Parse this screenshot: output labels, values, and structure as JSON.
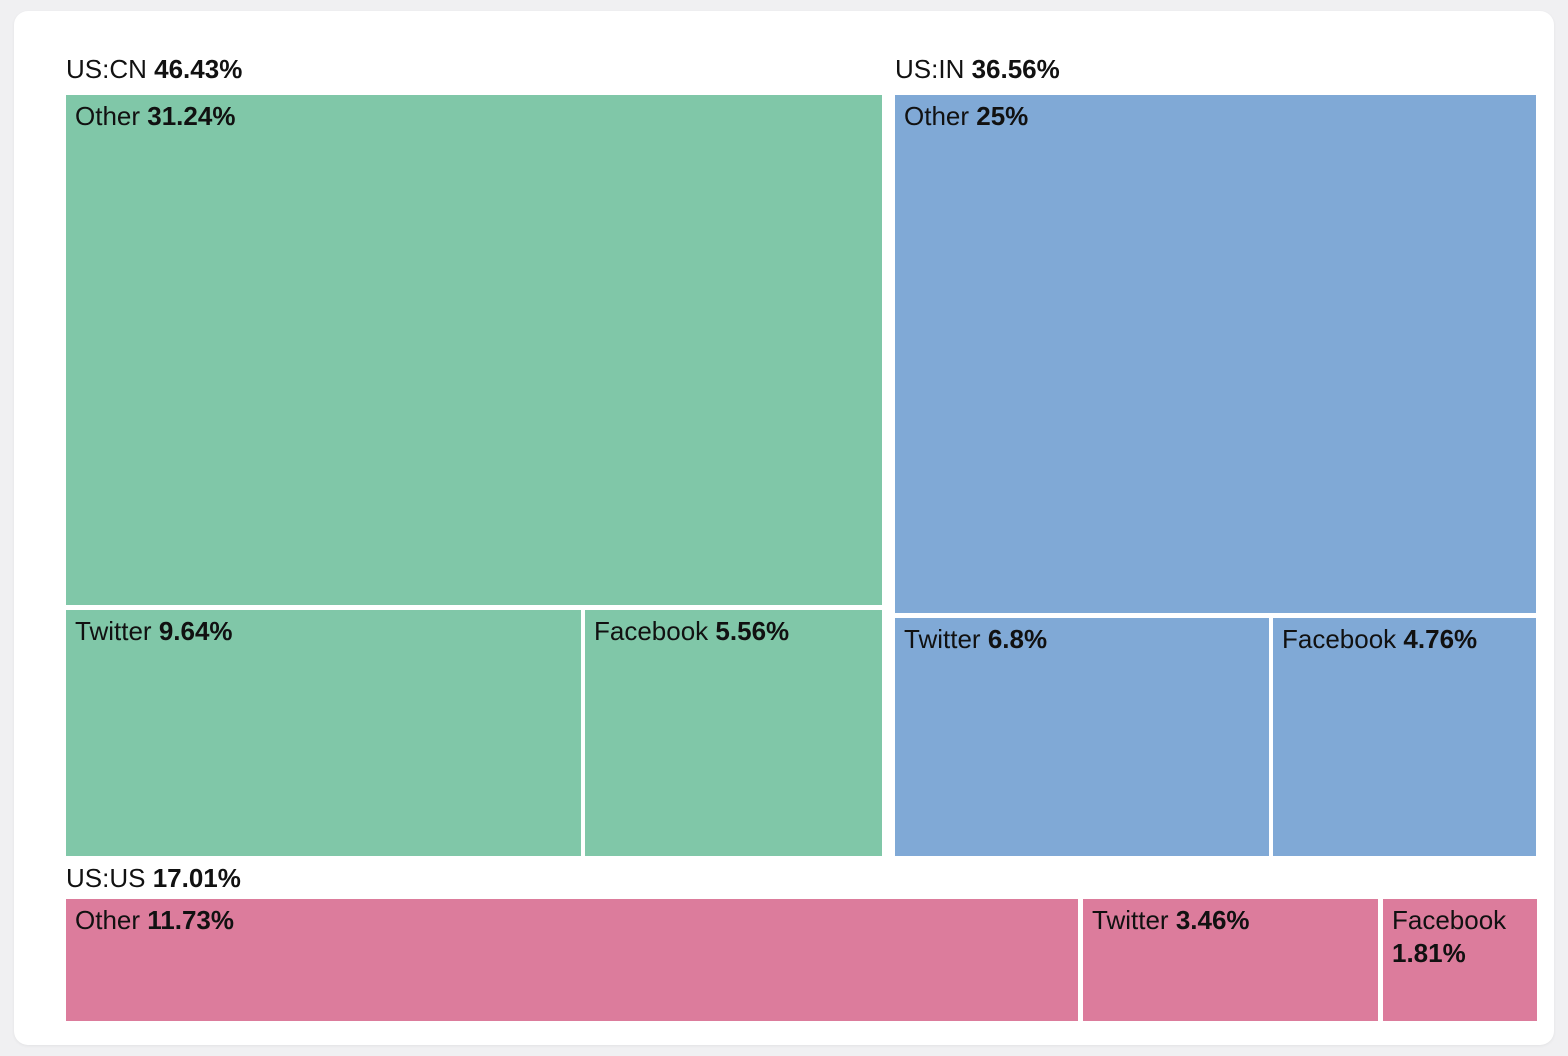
{
  "page": {
    "background": "#f0f0f2",
    "card_background": "#ffffff",
    "text_color": "#111111"
  },
  "chart_data": {
    "type": "treemap",
    "unit": "%",
    "legend_position": "none",
    "groups": [
      {
        "name": "US:CN",
        "share_pct": 46.43,
        "pct_label": "46.43%",
        "color": "#80c7a8",
        "children": [
          {
            "name": "Other",
            "share_pct": 31.24,
            "pct_label": "31.24%"
          },
          {
            "name": "Twitter",
            "share_pct": 9.64,
            "pct_label": "9.64%"
          },
          {
            "name": "Facebook",
            "share_pct": 5.56,
            "pct_label": "5.56%"
          }
        ]
      },
      {
        "name": "US:IN",
        "share_pct": 36.56,
        "pct_label": "36.56%",
        "color": "#80a9d6",
        "children": [
          {
            "name": "Other",
            "share_pct": 25,
            "pct_label": "25%"
          },
          {
            "name": "Twitter",
            "share_pct": 6.8,
            "pct_label": "6.8%"
          },
          {
            "name": "Facebook",
            "share_pct": 4.76,
            "pct_label": "4.76%"
          }
        ]
      },
      {
        "name": "US:US",
        "share_pct": 17.01,
        "pct_label": "17.01%",
        "color": "#dc7c9c",
        "children": [
          {
            "name": "Other",
            "share_pct": 11.73,
            "pct_label": "11.73%"
          },
          {
            "name": "Twitter",
            "share_pct": 3.46,
            "pct_label": "3.46%"
          },
          {
            "name": "Facebook",
            "share_pct": 1.81,
            "pct_label": "1.81%"
          }
        ]
      }
    ]
  }
}
